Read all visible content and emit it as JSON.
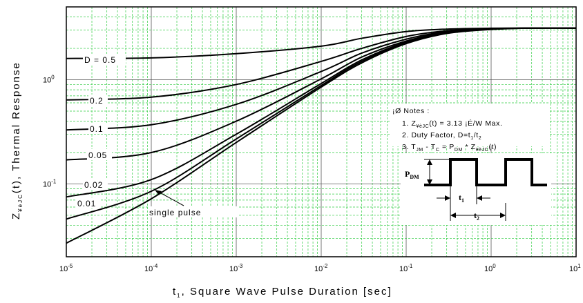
{
  "chart_data": {
    "type": "line",
    "xlabel": {
      "base": "t",
      "sub": "1",
      "rest": ", Square Wave Pulse Duration [sec]"
    },
    "ylabel": {
      "base": "Z",
      "sub": "¥èJC",
      "rest": "(t), Thermal Response"
    },
    "xscale": "log",
    "yscale": "log",
    "xlim": [
      1e-05,
      10
    ],
    "ylim": [
      0.02,
      5
    ],
    "grid": true,
    "x_ticks": [
      {
        "base": "10",
        "exp": "-5"
      },
      {
        "base": "10",
        "exp": "-4"
      },
      {
        "base": "10",
        "exp": "-3"
      },
      {
        "base": "10",
        "exp": "-2"
      },
      {
        "base": "10",
        "exp": "-1"
      },
      {
        "base": "10",
        "exp": "0"
      },
      {
        "base": "10",
        "exp": "1"
      }
    ],
    "y_ticks": [
      {
        "base": "10",
        "exp": "-1"
      },
      {
        "base": "10",
        "exp": "0"
      }
    ],
    "series": [
      {
        "name": "D = 0.5",
        "x": [
          1e-05,
          0.0001,
          0.001,
          0.01,
          0.03,
          0.1,
          0.3,
          1,
          3,
          10
        ],
        "y": [
          1.6,
          1.62,
          1.78,
          2.1,
          2.5,
          2.9,
          3.06,
          3.12,
          3.13,
          3.13
        ]
      },
      {
        "name": "0.2",
        "x": [
          1e-05,
          0.0001,
          0.001,
          0.01,
          0.03,
          0.1,
          0.3,
          1,
          3,
          10
        ],
        "y": [
          0.64,
          0.68,
          0.9,
          1.5,
          2.0,
          2.6,
          2.95,
          3.1,
          3.13,
          3.13
        ]
      },
      {
        "name": "0.1",
        "x": [
          1e-05,
          0.0001,
          0.001,
          0.01,
          0.03,
          0.1,
          0.3,
          1,
          3,
          10
        ],
        "y": [
          0.33,
          0.37,
          0.58,
          1.2,
          1.8,
          2.45,
          2.9,
          3.08,
          3.13,
          3.13
        ]
      },
      {
        "name": "0.05",
        "x": [
          1e-05,
          0.0001,
          0.001,
          0.01,
          0.03,
          0.1,
          0.3,
          1,
          3,
          10
        ],
        "y": [
          0.17,
          0.2,
          0.4,
          1.02,
          1.65,
          2.35,
          2.86,
          3.07,
          3.13,
          3.13
        ]
      },
      {
        "name": "0.02",
        "x": [
          1e-05,
          0.0001,
          0.001,
          0.01,
          0.03,
          0.1,
          0.3,
          1,
          3,
          10
        ],
        "y": [
          0.075,
          0.11,
          0.3,
          0.92,
          1.55,
          2.3,
          2.83,
          3.06,
          3.13,
          3.13
        ]
      },
      {
        "name": "0.01",
        "x": [
          1e-05,
          0.0001,
          0.001,
          0.01,
          0.03,
          0.1,
          0.3,
          1,
          3,
          10
        ],
        "y": [
          0.046,
          0.085,
          0.27,
          0.88,
          1.5,
          2.25,
          2.8,
          3.05,
          3.13,
          3.13
        ]
      },
      {
        "name": "single pulse",
        "x": [
          1e-05,
          0.0001,
          0.001,
          0.01,
          0.03,
          0.1,
          0.3,
          1,
          3,
          10
        ],
        "y": [
          0.027,
          0.072,
          0.25,
          0.85,
          1.45,
          2.22,
          2.78,
          3.04,
          3.13,
          3.13
        ]
      }
    ],
    "annotations": {
      "curve_labels": [
        "D = 0.5",
        "0.2",
        "0.1",
        "0.05",
        "0.02",
        "0.01"
      ],
      "single_pulse": "single pulse",
      "notes_title": "¡Ø Notes :",
      "note1": {
        "a": "1. Z",
        "sub": "¥èJC",
        "b": "(t) = 3.13 ¡É/W  Max."
      },
      "note2": {
        "a": "2. Duty Factor, D=t",
        "sub1": "1",
        "b": "/t",
        "sub2": "2"
      },
      "note3": {
        "a": "3. T",
        "sub1": "JM",
        "b": " - T",
        "sub2": "C",
        "c": " = P",
        "sub3": "DM",
        "d": " * Z",
        "sub4": "¥èJC",
        "e": "(t)"
      },
      "waveform": {
        "pdm": "P",
        "pdm_sub": "DM",
        "t1": "t",
        "t1_sub": "1",
        "t2": "t",
        "t2_sub": "2"
      }
    }
  }
}
